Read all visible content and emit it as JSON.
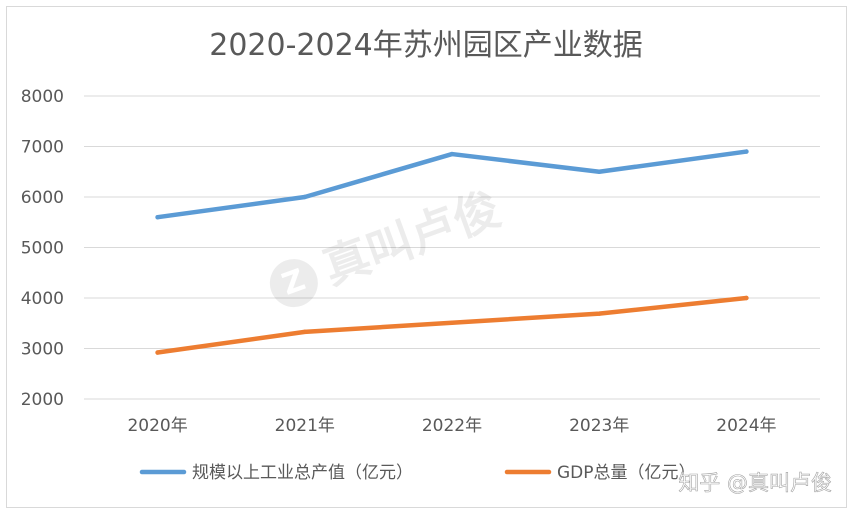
{
  "chart_data": {
    "type": "line",
    "title": "2020-2024年苏州园区产业数据",
    "categories": [
      "2020年",
      "2021年",
      "2022年",
      "2023年",
      "2024年"
    ],
    "ylim": [
      2000,
      8000
    ],
    "yticks": [
      2000,
      3000,
      4000,
      5000,
      6000,
      7000,
      8000
    ],
    "grid": true,
    "legend_position": "bottom",
    "series": [
      {
        "name": "规模以上工业总产值（亿元）",
        "color": "#5b9bd5",
        "values": [
          5600,
          6000,
          6850,
          6500,
          6900
        ]
      },
      {
        "name": "GDP总量（亿元）",
        "color": "#ed7d31",
        "values": [
          2920,
          3330,
          3510,
          3690,
          4000
        ]
      }
    ]
  },
  "watermark": {
    "center_text": "真叫卢俊",
    "corner_text": "知乎 @真叫卢俊"
  }
}
